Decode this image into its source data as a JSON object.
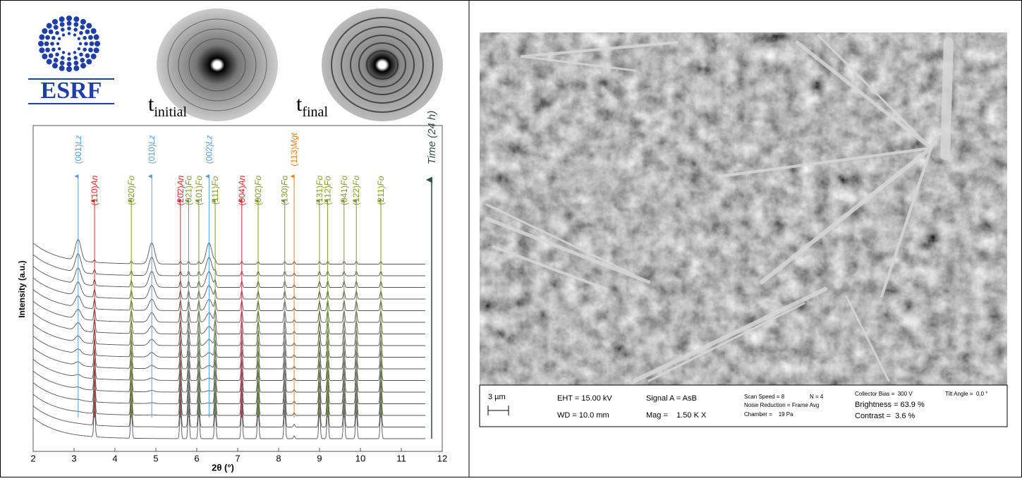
{
  "logo": {
    "text": "ESRF"
  },
  "patterns": [
    {
      "base": "t",
      "sub": "initial"
    },
    {
      "base": "t",
      "sub": "final"
    }
  ],
  "chart_data": {
    "type": "waterfall",
    "xlabel": "2θ (°)",
    "ylabel": "Intensity (a.u.)",
    "time_label": "Time (24 h)",
    "xlim": [
      2,
      12
    ],
    "xticks": [
      2,
      3,
      4,
      5,
      6,
      7,
      8,
      9,
      10,
      11,
      12
    ],
    "peaks": [
      {
        "hkl": "(001)",
        "phase": "Lz",
        "position": 3.1,
        "color": "#5b9bd5"
      },
      {
        "hkl": "(1̄10)",
        "phase": "An",
        "position": 3.5,
        "color": "#e8262b"
      },
      {
        "hkl": "(020)",
        "phase": "Fo",
        "position": 4.4,
        "color": "#7f9a2e"
      },
      {
        "hkl": "(010)",
        "phase": "Lz",
        "position": 4.9,
        "color": "#5b9bd5"
      },
      {
        "hkl": "(20̄2)",
        "phase": "An",
        "position": 5.6,
        "color": "#e8262b"
      },
      {
        "hkl": "(021)",
        "phase": "Fo",
        "position": 5.8,
        "color": "#7f9a2e"
      },
      {
        "hkl": "(101)",
        "phase": "Fo",
        "position": 6.05,
        "color": "#7f9a2e"
      },
      {
        "hkl": "(002)",
        "phase": "Lz",
        "position": 6.3,
        "color": "#5b9bd5"
      },
      {
        "hkl": "(111)",
        "phase": "Fo",
        "position": 6.45,
        "color": "#7f9a2e"
      },
      {
        "hkl": "(004)",
        "phase": "An",
        "position": 7.1,
        "color": "#e8262b"
      },
      {
        "hkl": "(002)",
        "phase": "Fo",
        "position": 7.5,
        "color": "#7f9a2e"
      },
      {
        "hkl": "(130)",
        "phase": "Fo",
        "position": 8.15,
        "color": "#7f9a2e"
      },
      {
        "hkl": "(113)",
        "phase": "Mgt",
        "position": 8.38,
        "color": "#f07f1e"
      },
      {
        "hkl": "(131)",
        "phase": "Fo",
        "position": 9.0,
        "color": "#7f9a2e"
      },
      {
        "hkl": "(112)",
        "phase": "Fo",
        "position": 9.2,
        "color": "#7f9a2e"
      },
      {
        "hkl": "(041)",
        "phase": "Fo",
        "position": 9.6,
        "color": "#7f9a2e"
      },
      {
        "hkl": "(122)",
        "phase": "Fo",
        "position": 9.9,
        "color": "#7f9a2e"
      },
      {
        "hkl": "(211)",
        "phase": "Fo",
        "position": 10.5,
        "color": "#7f9a2e"
      }
    ]
  },
  "sem": {
    "scale": "3 µm",
    "eht": "EHT = 15.00 kV",
    "wd": "WD = 10.0 mm",
    "signal": "Signal A = AsB",
    "mag": "Mag =    1.50 K X",
    "scan_speed": "Scan Speed = 8",
    "n": "N = 4",
    "noise": "Noise Reduction = Frame Avg",
    "chamber": "Chamber =    19 Pa",
    "bias": "Collector Bias =  300 V",
    "tilt": "Tilt Angle =  0.0 °",
    "brightness": "Brightness = 63.9 %",
    "contrast": "Contrast =  3.6 %"
  }
}
